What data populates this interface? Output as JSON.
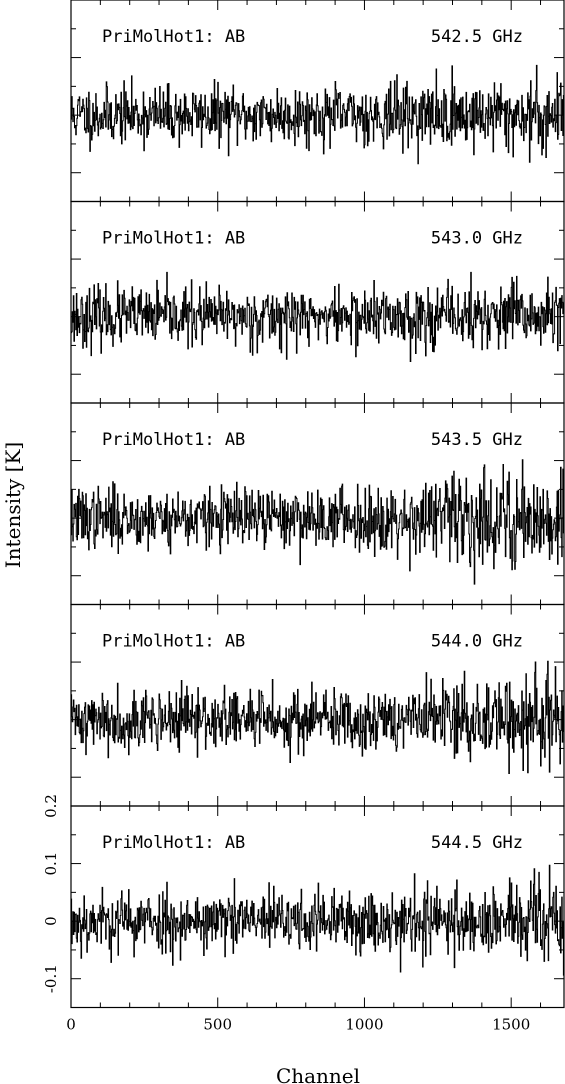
{
  "chart_data": {
    "type": "line",
    "xlabel": "Channel",
    "ylabel": "Intensity [K]",
    "xlim": [
      0,
      1680
    ],
    "ylim": [
      -0.15,
      0.2
    ],
    "x_ticks": [
      0,
      500,
      1000,
      1500
    ],
    "x_tick_labels": [
      "0",
      "500",
      "1000",
      "1500"
    ],
    "y_ticks": [
      -0.1,
      0,
      0.1,
      0.2
    ],
    "y_tick_labels": [
      "-0.1",
      "0",
      "0.1",
      "0.2"
    ],
    "grid": false,
    "n_channels": 1680,
    "panels": [
      {
        "label": "PriMolHot1: AB",
        "freq": "542.5 GHz",
        "noise_rms": [
          0.025,
          0.034
        ],
        "seed": 11
      },
      {
        "label": "PriMolHot1: AB",
        "freq": "543.0 GHz",
        "noise_rms": [
          0.025,
          0.03
        ],
        "seed": 23
      },
      {
        "label": "PriMolHot1: AB",
        "freq": "543.5 GHz",
        "noise_rms": [
          0.026,
          0.048
        ],
        "seed": 37
      },
      {
        "label": "PriMolHot1: AB",
        "freq": "544.0 GHz",
        "noise_rms": [
          0.026,
          0.046
        ],
        "seed": 41
      },
      {
        "label": "PriMolHot1: AB",
        "freq": "544.5 GHz",
        "noise_rms": [
          0.027,
          0.036
        ],
        "seed": 53
      }
    ]
  }
}
